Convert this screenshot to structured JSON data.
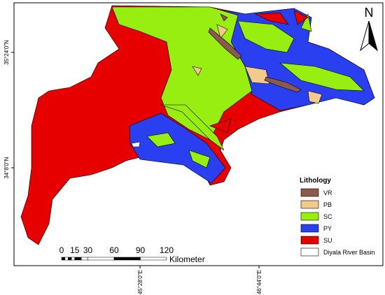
{
  "map": {
    "lat_labels": [
      "35°24'0\"N",
      "34°8'0\"N"
    ],
    "lon_labels": [
      "45°28'0\"E",
      "46°44'0\"E"
    ],
    "north": "N",
    "legend": {
      "title": "Lithology",
      "items": [
        {
          "label": "VR",
          "color": "#8c5a4c"
        },
        {
          "label": "PB",
          "color": "#f3c98c"
        },
        {
          "label": "SC",
          "color": "#99ee11"
        },
        {
          "label": "PY",
          "color": "#2a3ff0"
        },
        {
          "label": "SU",
          "color": "#e60000"
        },
        {
          "label": "Diyala River Basin",
          "color": "#ffffff"
        }
      ]
    },
    "scale": {
      "labels": [
        0,
        15,
        30,
        60,
        90,
        120
      ],
      "unit": "Kilometer"
    }
  }
}
